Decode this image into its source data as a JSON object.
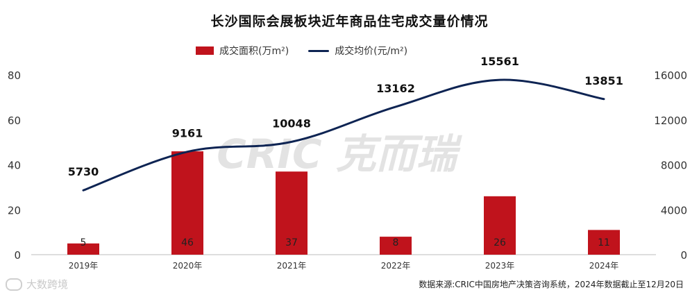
{
  "chart_data": {
    "type": "bar+line",
    "title": "长沙国际会展板块近年商品住宅成交量价情况",
    "categories": [
      "2019年",
      "2020年",
      "2021年",
      "2022年",
      "2023年",
      "2024年"
    ],
    "series": [
      {
        "name": "成交面积(万m²)",
        "type": "bar",
        "axis": "left",
        "values": [
          5,
          46,
          37,
          8,
          26,
          11
        ],
        "color": "#c0131c"
      },
      {
        "name": "成交均价(元/m²)",
        "type": "line",
        "axis": "right",
        "values": [
          5730,
          9161,
          10048,
          13162,
          15561,
          13851
        ],
        "color": "#0e2453"
      }
    ],
    "y_left": {
      "ticks": [
        0,
        20,
        40,
        60,
        80
      ],
      "ylim": [
        0,
        80
      ]
    },
    "y_right": {
      "ticks": [
        0,
        4000,
        8000,
        12000,
        16000
      ],
      "ylim": [
        0,
        16000
      ]
    }
  },
  "legend": {
    "bar_label": "成交面积(万m²)",
    "line_label": "成交均价(元/m²)"
  },
  "watermark": "CRIC 克而瑞",
  "source": "数据来源:CRIC中国房地产决策咨询系统，2024年数据截止至12月20日",
  "brand": "大数跨境"
}
